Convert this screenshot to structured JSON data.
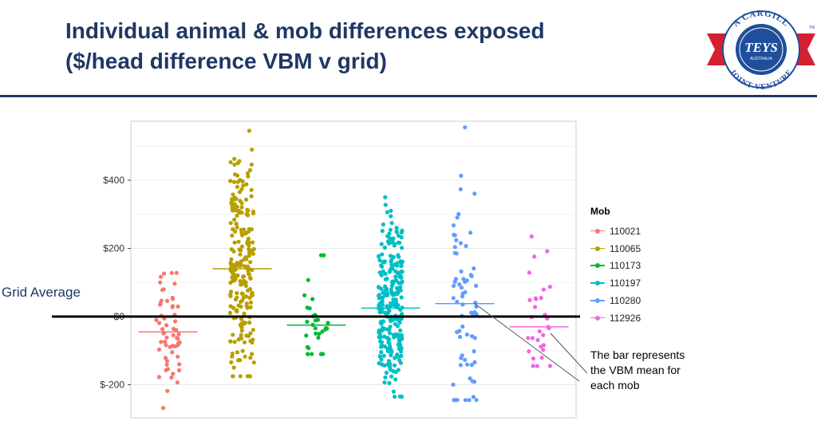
{
  "slide": {
    "title_line1": "Individual animal & mob differences exposed",
    "title_line2": "($/head difference VBM v grid)",
    "grid_average_label": "Grid Average",
    "note_lines": [
      "The bar represents",
      "the VBM mean for",
      "each mob"
    ],
    "colors": {
      "title": "#1f3864",
      "rule": "#1f3864"
    }
  },
  "logo": {
    "top_text": "A CARGILL",
    "brand": "TEYS",
    "sub": "AUSTRALIA",
    "bottom_text": "JOINT VENTURE",
    "tm": "TM",
    "colors": {
      "ribbon": "#d42030",
      "seal": "#1f4e9c",
      "text": "#1f4e9c"
    }
  },
  "chart_data": {
    "type": "scatter",
    "subtype": "jitter strip plot with mean bars",
    "categories": [
      "110021",
      "110065",
      "110173",
      "110197",
      "110280",
      "112926"
    ],
    "y_ticks": [
      {
        "value": 400,
        "label": "$400"
      },
      {
        "value": 200,
        "label": "$200"
      },
      {
        "value": 0,
        "label": "$0"
      },
      {
        "value": -200,
        "label": "$-200"
      }
    ],
    "ylim": [
      -300,
      580
    ],
    "grid": true,
    "grid_average_value": 0,
    "legend": {
      "title": "Mob",
      "placement": "right"
    },
    "series": [
      {
        "name": "110021",
        "color": "#f8766d",
        "mean": -45,
        "n": 60,
        "min": -268,
        "max": 128
      },
      {
        "name": "110065",
        "color": "#b79f00",
        "mean": 140,
        "n": 230,
        "min": -175,
        "max": 545
      },
      {
        "name": "110173",
        "color": "#00ba38",
        "mean": -25,
        "n": 30,
        "min": -110,
        "max": 180
      },
      {
        "name": "110197",
        "color": "#00bfc4",
        "mean": 25,
        "n": 260,
        "min": -235,
        "max": 350
      },
      {
        "name": "110280",
        "color": "#619cff",
        "mean": 38,
        "n": 70,
        "min": -245,
        "max": 555
      },
      {
        "name": "112926",
        "color": "#f564e3",
        "mean": -30,
        "n": 30,
        "min": -145,
        "max": 235
      }
    ]
  }
}
